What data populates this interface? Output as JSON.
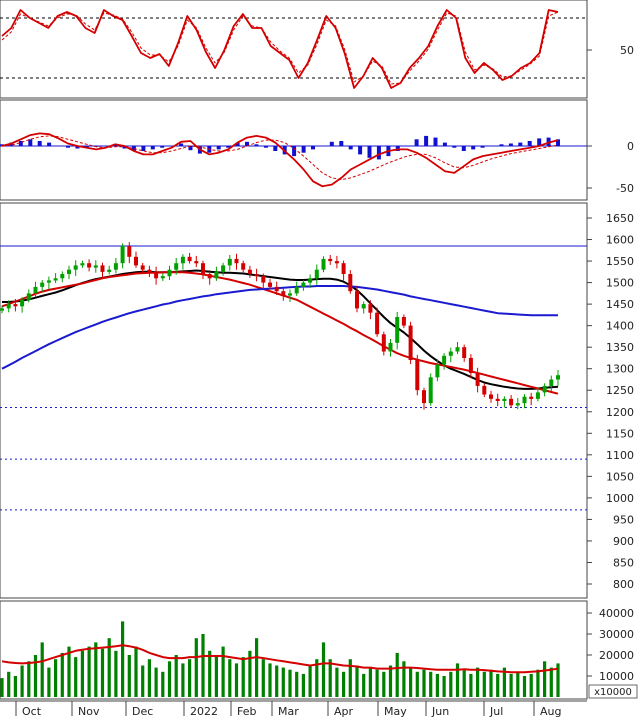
{
  "chart_data": [
    {
      "type": "line",
      "panel": "rsi",
      "yticks": [
        50
      ],
      "reference_levels": [
        80,
        20
      ],
      "series": [
        {
          "color": "#d40000",
          "style": "solid",
          "values": [
            62,
            70,
            88,
            80,
            75,
            70,
            82,
            86,
            82,
            70,
            65,
            88,
            82,
            78,
            62,
            45,
            40,
            44,
            32,
            55,
            82,
            68,
            46,
            30,
            48,
            72,
            84,
            70,
            70,
            52,
            45,
            38,
            20,
            35,
            58,
            82,
            70,
            44,
            10,
            22,
            40,
            30,
            10,
            15,
            30,
            40,
            52,
            72,
            88,
            80,
            40,
            25,
            35,
            28,
            18,
            22,
            30,
            35,
            45,
            88,
            86
          ]
        },
        {
          "color": "#d40000",
          "style": "dashed",
          "values": [
            58,
            66,
            84,
            80,
            76,
            72,
            80,
            84,
            83,
            74,
            68,
            85,
            83,
            79,
            66,
            50,
            43,
            43,
            36,
            52,
            78,
            70,
            50,
            35,
            46,
            68,
            82,
            72,
            70,
            56,
            47,
            40,
            25,
            33,
            54,
            78,
            72,
            48,
            16,
            22,
            37,
            32,
            14,
            15,
            27,
            37,
            49,
            68,
            85,
            82,
            46,
            28,
            33,
            29,
            21,
            22,
            28,
            34,
            42,
            82,
            86
          ]
        }
      ]
    },
    {
      "type": "bar",
      "panel": "macd",
      "yticks": [
        0,
        -50
      ],
      "series": [
        {
          "name": "histogram",
          "color": "#1010d0",
          "values": [
            2,
            4,
            6,
            8,
            6,
            4,
            0,
            -2,
            -3,
            -2,
            -1,
            0,
            2,
            -3,
            -6,
            -6,
            -4,
            -2,
            0,
            3,
            -5,
            -9,
            -8,
            -4,
            -2,
            4,
            5,
            2,
            -2,
            -6,
            -10,
            -12,
            -8,
            -4,
            0,
            5,
            6,
            -4,
            -10,
            -14,
            -16,
            -12,
            -6,
            0,
            8,
            12,
            10,
            4,
            -2,
            -6,
            -4,
            -2,
            0,
            2,
            3,
            4,
            6,
            9,
            10,
            8
          ]
        },
        {
          "name": "macd",
          "color": "#d40000",
          "values": [
            0,
            3,
            8,
            13,
            15,
            14,
            9,
            3,
            0,
            -2,
            -4,
            -2,
            2,
            0,
            -6,
            -10,
            -10,
            -6,
            -2,
            5,
            6,
            -4,
            -10,
            -8,
            -4,
            4,
            10,
            12,
            10,
            4,
            -6,
            -16,
            -28,
            -42,
            -48,
            -46,
            -38,
            -28,
            -22,
            -16,
            -10,
            -6,
            -4,
            -4,
            -8,
            -14,
            -22,
            -30,
            -32,
            -24,
            -16,
            -12,
            -10,
            -8,
            -6,
            -4,
            -2,
            0,
            4,
            7
          ]
        },
        {
          "name": "signal",
          "color": "#d40000",
          "style": "dashed",
          "values": [
            0,
            1,
            4,
            8,
            11,
            12,
            11,
            8,
            5,
            2,
            -1,
            -2,
            -1,
            -1,
            -3,
            -6,
            -8,
            -8,
            -6,
            -3,
            0,
            -1,
            -4,
            -6,
            -6,
            -4,
            0,
            4,
            7,
            7,
            4,
            -3,
            -12,
            -22,
            -32,
            -38,
            -40,
            -38,
            -34,
            -30,
            -25,
            -20,
            -16,
            -12,
            -10,
            -10,
            -14,
            -20,
            -25,
            -26,
            -23,
            -19,
            -15,
            -12,
            -9,
            -7,
            -5,
            -3,
            -1,
            1
          ]
        }
      ]
    },
    {
      "type": "candlestick",
      "panel": "price",
      "yticks": [
        800,
        850,
        900,
        950,
        1000,
        1050,
        1100,
        1150,
        1200,
        1250,
        1300,
        1350,
        1400,
        1450,
        1500,
        1550,
        1600,
        1650
      ],
      "ylim": [
        760,
        1680
      ],
      "xlabels": [
        "Oct",
        "Nov",
        "Dec",
        "2022",
        "Feb",
        "Mar",
        "Apr",
        "May",
        "Jun",
        "Jul",
        "Aug"
      ],
      "horizontal_lines": [
        {
          "value": 1585,
          "color": "#1a1ad0",
          "style": "solid"
        },
        {
          "value": 1210,
          "color": "#1a1ad0",
          "style": "dotted"
        },
        {
          "value": 1090,
          "color": "#1a1ad0",
          "style": "dotted"
        },
        {
          "value": 972,
          "color": "#1a1ad0",
          "style": "dotted"
        }
      ],
      "close": [
        1440,
        1450,
        1445,
        1460,
        1475,
        1490,
        1500,
        1505,
        1510,
        1520,
        1530,
        1540,
        1545,
        1535,
        1540,
        1525,
        1530,
        1545,
        1585,
        1560,
        1540,
        1530,
        1525,
        1510,
        1515,
        1530,
        1545,
        1560,
        1550,
        1545,
        1520,
        1510,
        1525,
        1540,
        1555,
        1545,
        1530,
        1520,
        1515,
        1500,
        1490,
        1480,
        1470,
        1475,
        1490,
        1500,
        1510,
        1530,
        1555,
        1550,
        1545,
        1520,
        1480,
        1440,
        1450,
        1430,
        1380,
        1340,
        1360,
        1420,
        1400,
        1320,
        1250,
        1220,
        1280,
        1310,
        1330,
        1340,
        1350,
        1325,
        1290,
        1260,
        1240,
        1230,
        1225,
        1230,
        1215,
        1220,
        1235,
        1230,
        1245,
        1260,
        1275,
        1285
      ],
      "series": [
        {
          "name": "MA1",
          "color": "#000000",
          "values": [
            1455,
            1455,
            1456,
            1458,
            1461,
            1465,
            1469,
            1473,
            1477,
            1482,
            1488,
            1494,
            1499,
            1504,
            1508,
            1511,
            1514,
            1517,
            1520,
            1522,
            1524,
            1525,
            1525,
            1524,
            1524,
            1524,
            1525,
            1526,
            1527,
            1528,
            1527,
            1525,
            1524,
            1523,
            1523,
            1522,
            1521,
            1519,
            1517,
            1515,
            1513,
            1511,
            1509,
            1507,
            1506,
            1506,
            1507,
            1508,
            1509,
            1509,
            1507,
            1502,
            1494,
            1482,
            1468,
            1452,
            1436,
            1420,
            1406,
            1395,
            1384,
            1371,
            1357,
            1342,
            1329,
            1318,
            1308,
            1300,
            1294,
            1288,
            1281,
            1274,
            1268,
            1264,
            1261,
            1258,
            1256,
            1254,
            1253,
            1253,
            1254,
            1256,
            1257,
            1258
          ]
        },
        {
          "name": "MA2",
          "color": "#d40000",
          "values": [
            1445,
            1450,
            1456,
            1462,
            1468,
            1474,
            1479,
            1483,
            1486,
            1489,
            1492,
            1495,
            1498,
            1502,
            1506,
            1510,
            1513,
            1515,
            1517,
            1519,
            1521,
            1522,
            1523,
            1523,
            1524,
            1524,
            1524,
            1524,
            1523,
            1521,
            1519,
            1516,
            1513,
            1510,
            1507,
            1503,
            1499,
            1495,
            1490,
            1485,
            1480,
            1475,
            1470,
            1465,
            1460,
            1452,
            1444,
            1436,
            1428,
            1420,
            1412,
            1404,
            1395,
            1387,
            1378,
            1370,
            1361,
            1352,
            1344,
            1336,
            1330,
            1325,
            1321,
            1317,
            1313,
            1310,
            1307,
            1304,
            1301,
            1298,
            1294,
            1290,
            1286,
            1282,
            1278,
            1274,
            1270,
            1266,
            1262,
            1258,
            1254,
            1250,
            1246,
            1242
          ]
        },
        {
          "name": "MA3",
          "color": "#1a1ad0",
          "values": [
            1300,
            1308,
            1316,
            1325,
            1333,
            1341,
            1349,
            1357,
            1364,
            1371,
            1378,
            1385,
            1391,
            1397,
            1403,
            1409,
            1414,
            1419,
            1424,
            1429,
            1433,
            1437,
            1441,
            1445,
            1449,
            1452,
            1456,
            1459,
            1462,
            1465,
            1468,
            1470,
            1473,
            1475,
            1477,
            1479,
            1481,
            1483,
            1484,
            1485,
            1486,
            1487,
            1488,
            1489,
            1490,
            1491,
            1491,
            1492,
            1492,
            1492,
            1492,
            1492,
            1491,
            1490,
            1488,
            1486,
            1484,
            1481,
            1478,
            1475,
            1472,
            1468,
            1465,
            1462,
            1459,
            1456,
            1453,
            1450,
            1447,
            1444,
            1441,
            1438,
            1435,
            1432,
            1429,
            1428,
            1427,
            1426,
            1425,
            1424,
            1424,
            1424,
            1424,
            1424
          ]
        }
      ]
    },
    {
      "type": "bar",
      "panel": "volume",
      "yticks": [
        10000,
        20000,
        30000,
        40000
      ],
      "multiplier_label": "x10000",
      "xlabels": [
        "Oct",
        "Nov",
        "Dec",
        "2022",
        "Feb",
        "Mar",
        "Apr",
        "May",
        "Jun",
        "Jul",
        "Aug"
      ],
      "series": [
        {
          "name": "volume",
          "color": "#008000",
          "values": [
            9,
            12,
            10,
            15,
            17,
            20,
            26,
            14,
            18,
            21,
            24,
            19,
            22,
            24,
            26,
            23,
            28,
            22,
            36,
            20,
            24,
            15,
            18,
            14,
            12,
            17,
            20,
            16,
            18,
            28,
            30,
            22,
            20,
            24,
            18,
            16,
            19,
            22,
            28,
            18,
            16,
            15,
            14,
            13,
            12,
            11,
            15,
            18,
            26,
            18,
            14,
            12,
            18,
            15,
            11,
            14,
            13,
            12,
            15,
            21,
            17,
            14,
            12,
            13,
            12,
            11,
            10,
            12,
            16,
            13,
            11,
            14,
            12,
            13,
            11,
            14,
            11,
            12,
            10,
            11,
            13,
            17,
            14,
            16
          ]
        },
        {
          "name": "volume MA",
          "color": "#d40000",
          "values": [
            17,
            16.5,
            16.2,
            16,
            16.2,
            16.5,
            17,
            18,
            19,
            20,
            21,
            22,
            22.5,
            23,
            23.2,
            23.5,
            23.8,
            24.2,
            24.6,
            24.2,
            23.5,
            22.5,
            21,
            20,
            19,
            18.5,
            18.5,
            18.5,
            19,
            19,
            19.5,
            19.5,
            19.5,
            19.5,
            19,
            18.5,
            18,
            18.5,
            19,
            18.5,
            18,
            17.5,
            17,
            16.5,
            16,
            15.5,
            15,
            15.5,
            16,
            16,
            15.5,
            15,
            14.8,
            14.5,
            14,
            14,
            13.5,
            13.5,
            13.5,
            13.8,
            14,
            14,
            13.8,
            13.5,
            13.2,
            13,
            13,
            13,
            13,
            13.2,
            13,
            13,
            12.8,
            12.5,
            12.2,
            12,
            11.8,
            11.8,
            11.8,
            12,
            12.2,
            12.6,
            13,
            13.5
          ]
        }
      ]
    }
  ]
}
